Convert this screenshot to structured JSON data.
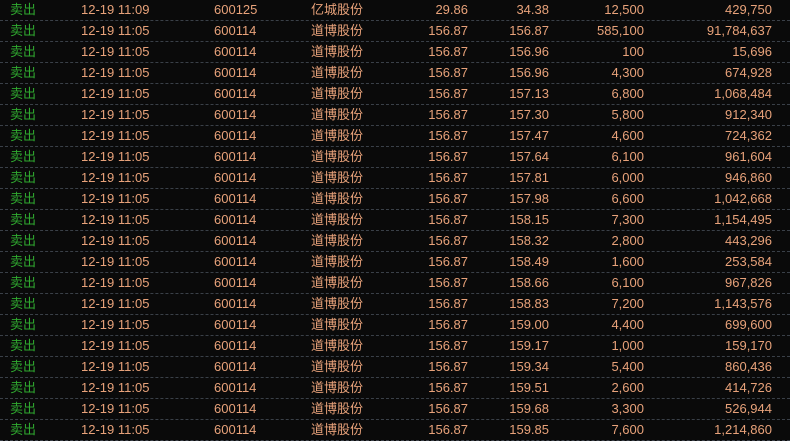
{
  "colors": {
    "sell": "#2fa82f",
    "text": "#e8a27a",
    "background": "#0a0a0a"
  },
  "rows": [
    [
      "卖出",
      "12-19 11:09",
      "600125",
      "亿城股份",
      "29.86",
      "34.38",
      "12,500",
      "429,750"
    ],
    [
      "卖出",
      "12-19 11:05",
      "600114",
      "道博股份",
      "156.87",
      "156.87",
      "585,100",
      "91,784,637"
    ],
    [
      "卖出",
      "12-19 11:05",
      "600114",
      "道博股份",
      "156.87",
      "156.96",
      "100",
      "15,696"
    ],
    [
      "卖出",
      "12-19 11:05",
      "600114",
      "道博股份",
      "156.87",
      "156.96",
      "4,300",
      "674,928"
    ],
    [
      "卖出",
      "12-19 11:05",
      "600114",
      "道博股份",
      "156.87",
      "157.13",
      "6,800",
      "1,068,484"
    ],
    [
      "卖出",
      "12-19 11:05",
      "600114",
      "道博股份",
      "156.87",
      "157.30",
      "5,800",
      "912,340"
    ],
    [
      "卖出",
      "12-19 11:05",
      "600114",
      "道博股份",
      "156.87",
      "157.47",
      "4,600",
      "724,362"
    ],
    [
      "卖出",
      "12-19 11:05",
      "600114",
      "道博股份",
      "156.87",
      "157.64",
      "6,100",
      "961,604"
    ],
    [
      "卖出",
      "12-19 11:05",
      "600114",
      "道博股份",
      "156.87",
      "157.81",
      "6,000",
      "946,860"
    ],
    [
      "卖出",
      "12-19 11:05",
      "600114",
      "道博股份",
      "156.87",
      "157.98",
      "6,600",
      "1,042,668"
    ],
    [
      "卖出",
      "12-19 11:05",
      "600114",
      "道博股份",
      "156.87",
      "158.15",
      "7,300",
      "1,154,495"
    ],
    [
      "卖出",
      "12-19 11:05",
      "600114",
      "道博股份",
      "156.87",
      "158.32",
      "2,800",
      "443,296"
    ],
    [
      "卖出",
      "12-19 11:05",
      "600114",
      "道博股份",
      "156.87",
      "158.49",
      "1,600",
      "253,584"
    ],
    [
      "卖出",
      "12-19 11:05",
      "600114",
      "道博股份",
      "156.87",
      "158.66",
      "6,100",
      "967,826"
    ],
    [
      "卖出",
      "12-19 11:05",
      "600114",
      "道博股份",
      "156.87",
      "158.83",
      "7,200",
      "1,143,576"
    ],
    [
      "卖出",
      "12-19 11:05",
      "600114",
      "道博股份",
      "156.87",
      "159.00",
      "4,400",
      "699,600"
    ],
    [
      "卖出",
      "12-19 11:05",
      "600114",
      "道博股份",
      "156.87",
      "159.17",
      "1,000",
      "159,170"
    ],
    [
      "卖出",
      "12-19 11:05",
      "600114",
      "道博股份",
      "156.87",
      "159.34",
      "5,400",
      "860,436"
    ],
    [
      "卖出",
      "12-19 11:05",
      "600114",
      "道博股份",
      "156.87",
      "159.51",
      "2,600",
      "414,726"
    ],
    [
      "卖出",
      "12-19 11:05",
      "600114",
      "道博股份",
      "156.87",
      "159.68",
      "3,300",
      "526,944"
    ],
    [
      "卖出",
      "12-19 11:05",
      "600114",
      "道博股份",
      "156.87",
      "159.85",
      "7,600",
      "1,214,860"
    ]
  ]
}
